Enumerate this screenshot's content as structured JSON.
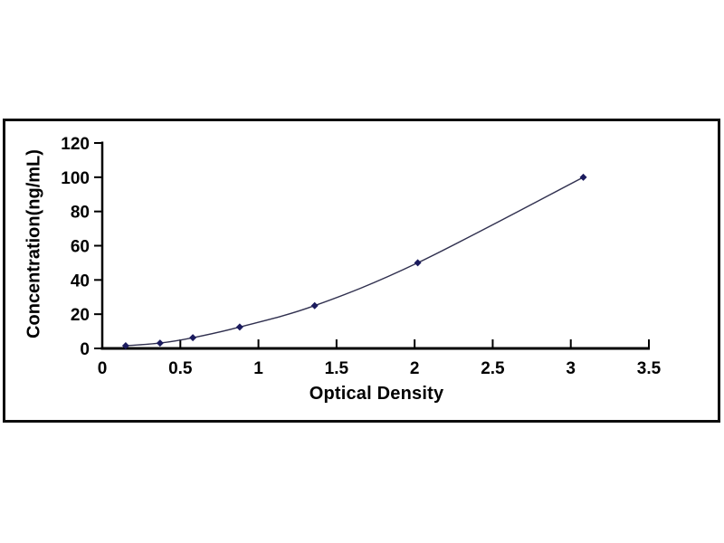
{
  "figure": {
    "background": "#ffffff",
    "frame_border_color": "#0d0d0d"
  },
  "chart_data": {
    "type": "line",
    "title": "",
    "xlabel": "Optical Density",
    "ylabel": "Concentration(ng/mL)",
    "x": [
      0.15,
      0.37,
      0.58,
      0.88,
      1.36,
      2.02,
      3.08
    ],
    "y": [
      1.56,
      3.13,
      6.25,
      12.5,
      25,
      50,
      100
    ],
    "xlim": [
      0,
      3.5
    ],
    "ylim": [
      0,
      120
    ],
    "xticks": [
      0,
      0.5,
      1,
      1.5,
      2,
      2.5,
      3,
      3.5
    ],
    "xtick_labels": [
      "0",
      "0.5",
      "1",
      "1.5",
      "2",
      "2.5",
      "3",
      "3.5"
    ],
    "yticks": [
      0,
      20,
      40,
      60,
      80,
      100,
      120
    ],
    "ytick_labels": [
      "0",
      "20",
      "40",
      "60",
      "80",
      "100",
      "120"
    ],
    "grid": false,
    "legend": null,
    "marker": "diamond",
    "marker_size": 8,
    "series_name": "standard-curve",
    "colors": {
      "line": "#30304f",
      "marker": "#1b1b5e",
      "axis": "#000000",
      "tick_text": "#000000",
      "frame": "#0d0d0d",
      "background": "#ffffff"
    }
  }
}
